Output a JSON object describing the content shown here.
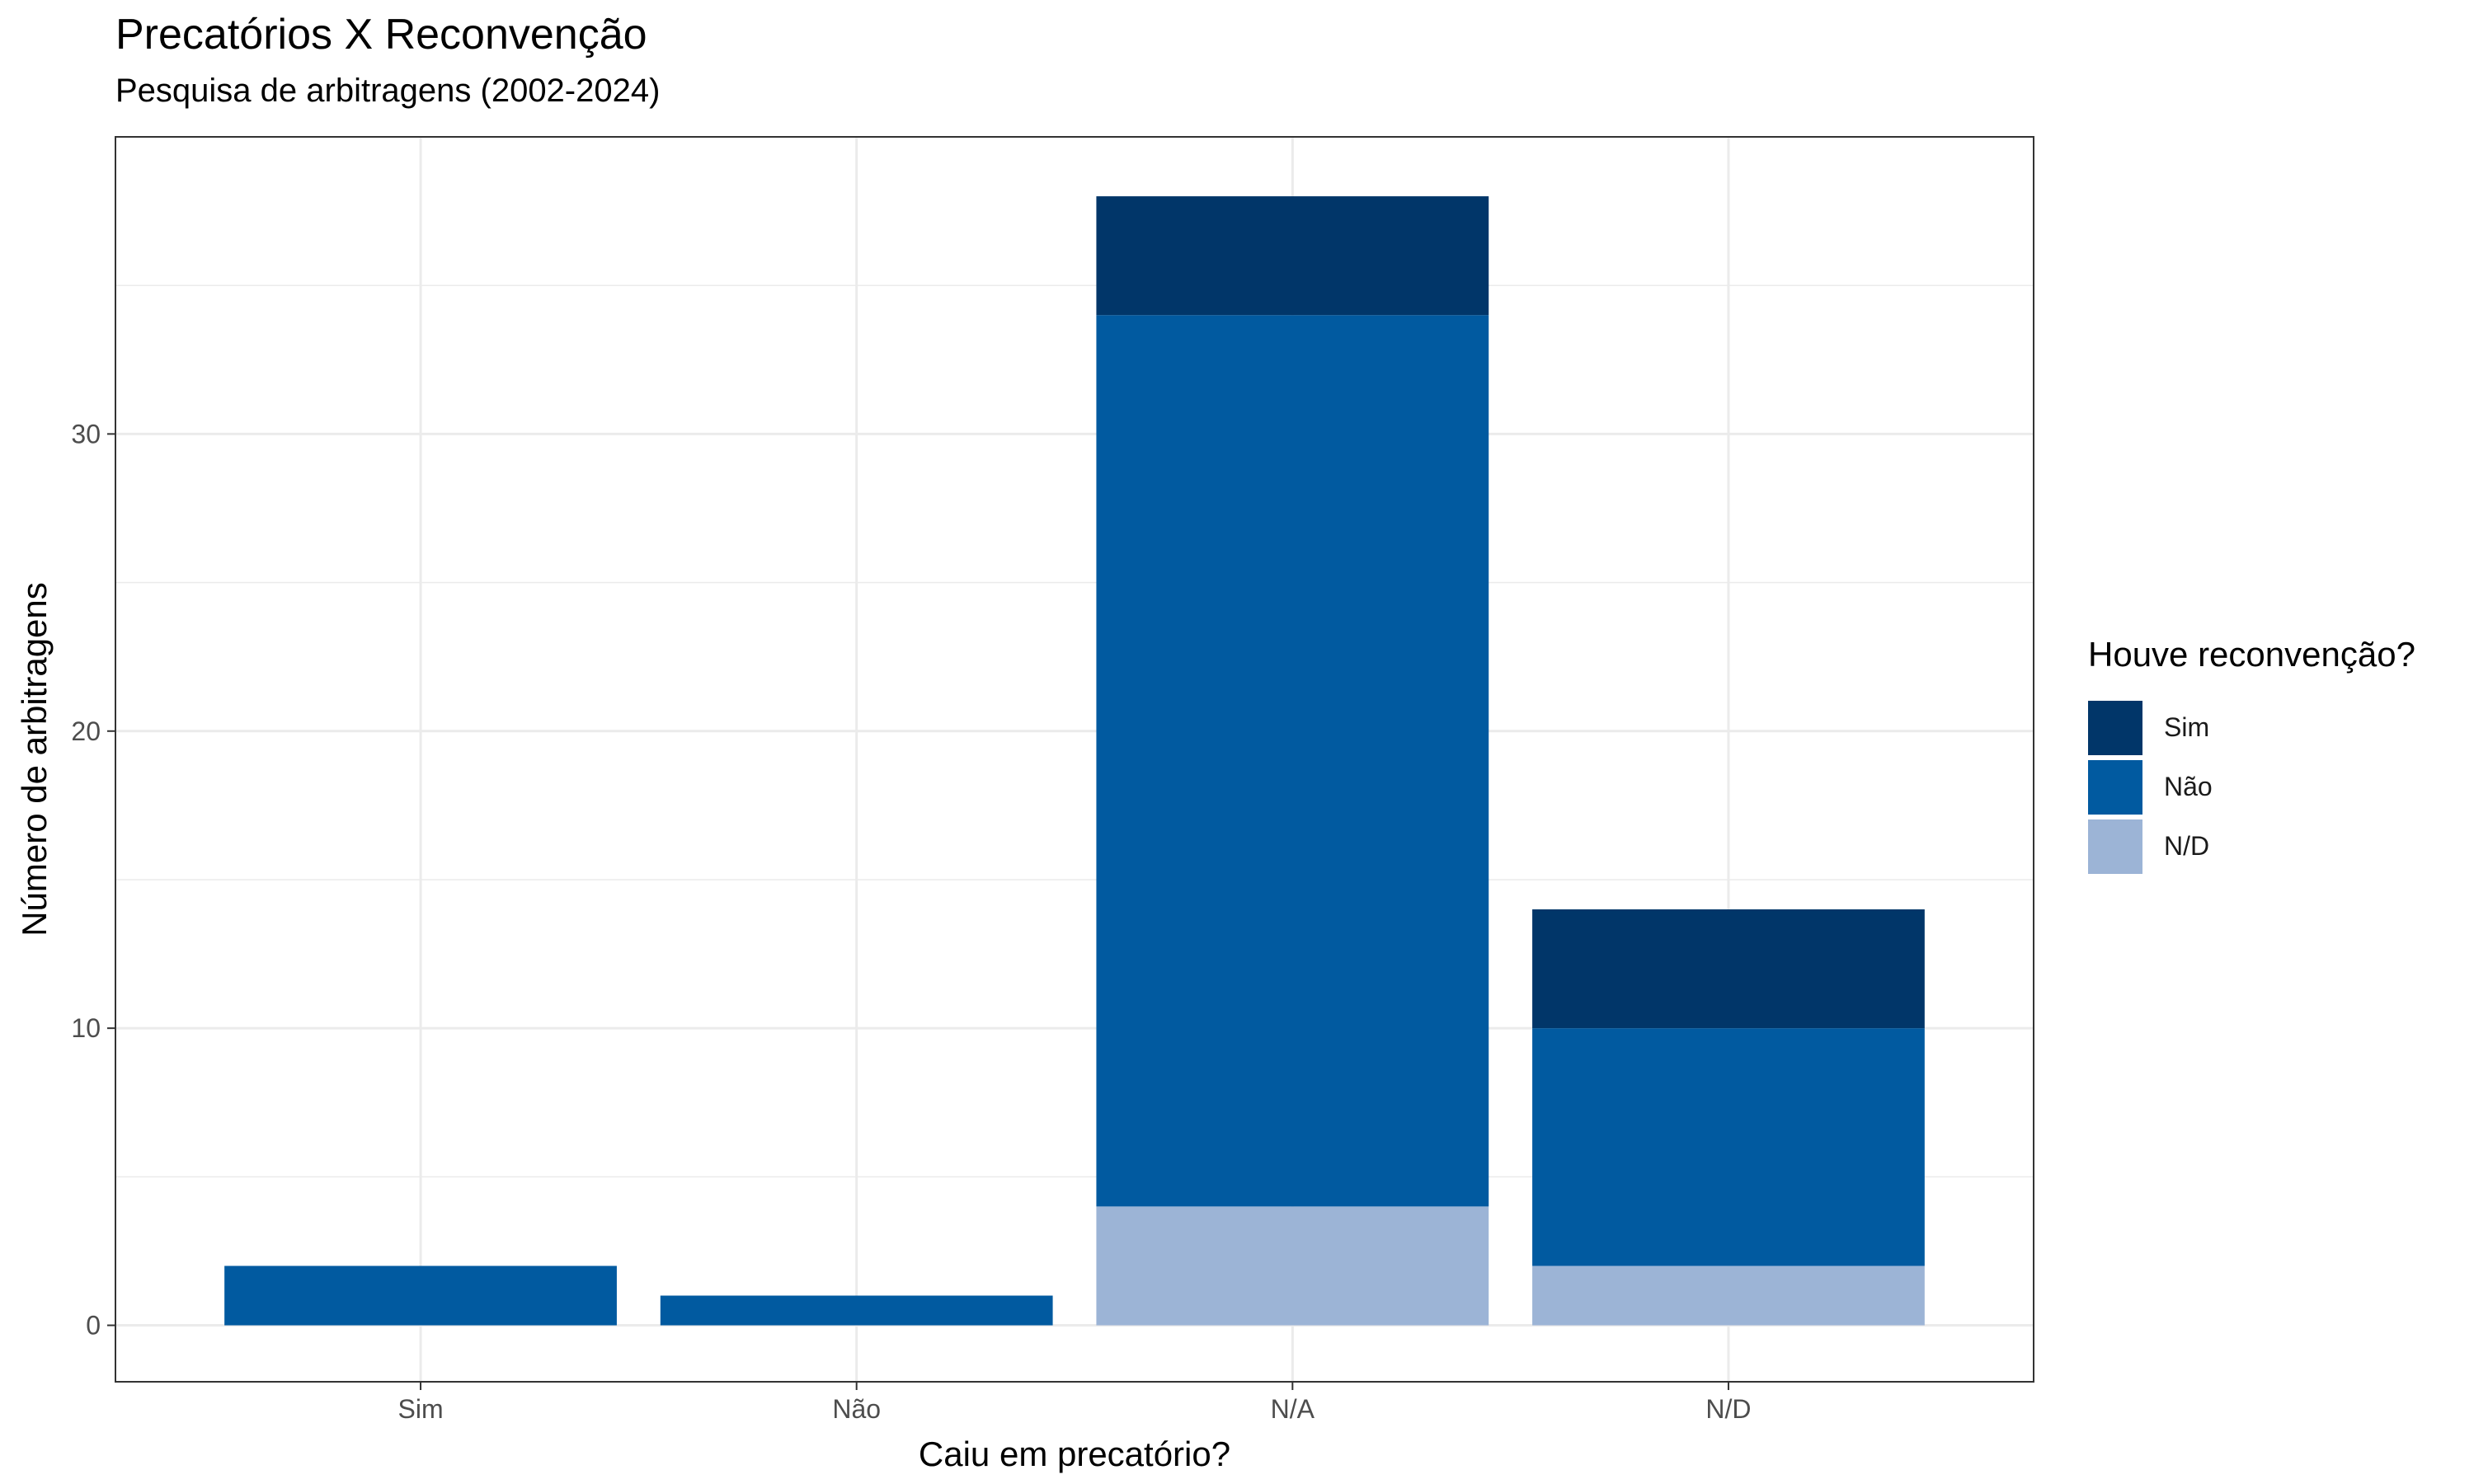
{
  "chart_data": {
    "type": "bar",
    "stacked": true,
    "title": "Precatórios X Reconvenção",
    "subtitle": "Pesquisa de arbitragens (2002-2024)",
    "xlabel": "Caiu em precatório?",
    "ylabel": "Número de arbitragens",
    "categories": [
      "Sim",
      "Não",
      "N/A",
      "N/D"
    ],
    "series": [
      {
        "name": "N/D",
        "color": "#9cb4d6",
        "values": [
          0,
          0,
          4,
          2
        ]
      },
      {
        "name": "Não",
        "color": "#015aa0",
        "values": [
          2,
          1,
          30,
          8
        ]
      },
      {
        "name": "Sim",
        "color": "#013669",
        "values": [
          0,
          0,
          4,
          4
        ]
      }
    ],
    "ylim": [
      -1.9,
      40
    ],
    "yticks": [
      0,
      10,
      20,
      30
    ],
    "grid": true,
    "legend": {
      "title": "Houve reconvenção?",
      "position": "right",
      "order": [
        "Sim",
        "Não",
        "N/D"
      ]
    }
  }
}
